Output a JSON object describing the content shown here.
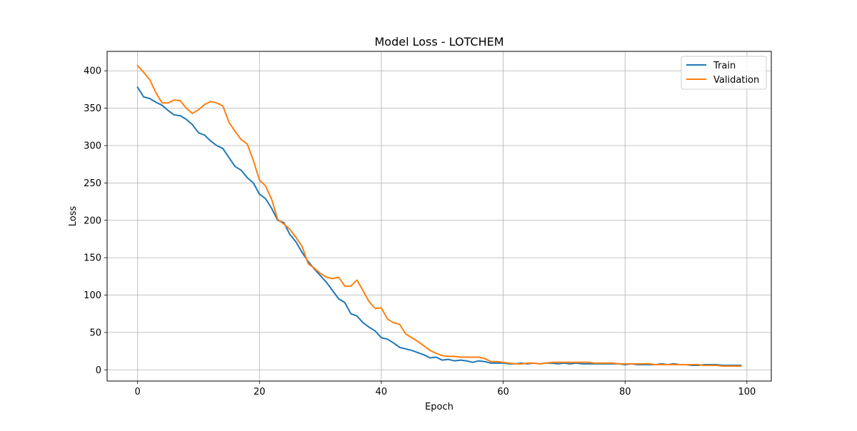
{
  "chart_data": {
    "type": "line",
    "title": "Model Loss - LOTCHEM",
    "xlabel": "Epoch",
    "ylabel": "Loss",
    "xlim": [
      -5,
      104
    ],
    "ylim": [
      -15,
      426
    ],
    "xticks": [
      0,
      20,
      40,
      60,
      80,
      100
    ],
    "yticks": [
      0,
      50,
      100,
      150,
      200,
      250,
      300,
      350,
      400
    ],
    "grid": true,
    "legend_position": "top-right",
    "series": [
      {
        "name": "Train",
        "color": "#1f77b4",
        "x": [
          0,
          1,
          2,
          3,
          4,
          5,
          6,
          7,
          8,
          9,
          10,
          11,
          12,
          13,
          14,
          15,
          16,
          17,
          18,
          19,
          20,
          21,
          22,
          23,
          24,
          25,
          26,
          27,
          28,
          29,
          30,
          31,
          32,
          33,
          34,
          35,
          36,
          37,
          38,
          39,
          40,
          41,
          42,
          43,
          44,
          45,
          46,
          47,
          48,
          49,
          50,
          51,
          52,
          53,
          54,
          55,
          56,
          57,
          58,
          59,
          60,
          61,
          62,
          63,
          64,
          65,
          66,
          67,
          68,
          69,
          70,
          71,
          72,
          73,
          74,
          75,
          76,
          77,
          78,
          79,
          80,
          81,
          82,
          83,
          84,
          85,
          86,
          87,
          88,
          89,
          90,
          91,
          92,
          93,
          94,
          95,
          96,
          97,
          98,
          99
        ],
        "values": [
          378,
          365,
          363,
          358,
          354,
          347,
          341,
          340,
          335,
          328,
          317,
          314,
          306,
          300,
          296,
          284,
          272,
          267,
          257,
          250,
          235,
          229,
          216,
          200,
          197,
          181,
          171,
          157,
          145,
          135,
          126,
          117,
          106,
          95,
          90,
          75,
          72,
          63,
          57,
          52,
          43,
          41,
          36,
          30,
          28,
          26,
          23,
          20,
          16,
          17,
          13,
          14,
          12,
          13,
          12,
          10,
          12,
          11,
          9,
          9,
          9,
          8,
          8,
          9,
          8,
          9,
          8,
          9,
          9,
          8,
          9,
          8,
          9,
          8,
          8,
          8,
          8,
          8,
          8,
          8,
          7,
          8,
          7,
          7,
          7,
          7,
          8,
          7,
          8,
          7,
          7,
          6,
          6,
          7,
          7,
          7,
          6,
          6,
          6,
          6
        ],
        "_comment": ""
      },
      {
        "name": "Validation",
        "color": "#ff7f0e",
        "x": [
          0,
          1,
          2,
          3,
          4,
          5,
          6,
          7,
          8,
          9,
          10,
          11,
          12,
          13,
          14,
          15,
          16,
          17,
          18,
          19,
          20,
          21,
          22,
          23,
          24,
          25,
          26,
          27,
          28,
          29,
          30,
          31,
          32,
          33,
          34,
          35,
          36,
          37,
          38,
          39,
          40,
          41,
          42,
          43,
          44,
          45,
          46,
          47,
          48,
          49,
          50,
          51,
          52,
          53,
          54,
          55,
          56,
          57,
          58,
          59,
          60,
          61,
          62,
          63,
          64,
          65,
          66,
          67,
          68,
          69,
          70,
          71,
          72,
          73,
          74,
          75,
          76,
          77,
          78,
          79,
          80,
          81,
          82,
          83,
          84,
          85,
          86,
          87,
          88,
          89,
          90,
          91,
          92,
          93,
          94,
          95,
          96,
          97,
          98,
          99
        ],
        "values": [
          407,
          398,
          388,
          371,
          357,
          357,
          361,
          360,
          350,
          343,
          348,
          355,
          359,
          357,
          353,
          331,
          319,
          308,
          302,
          280,
          254,
          246,
          228,
          201,
          195,
          188,
          177,
          165,
          142,
          136,
          129,
          124,
          122,
          124,
          112,
          112,
          120,
          106,
          91,
          82,
          83,
          68,
          63,
          61,
          48,
          43,
          38,
          32,
          26,
          22,
          19,
          18,
          18,
          17,
          17,
          17,
          17,
          15,
          11,
          11,
          10,
          9,
          8,
          8,
          9,
          9,
          8,
          9,
          10,
          10,
          10,
          10,
          10,
          10,
          10,
          9,
          9,
          9,
          9,
          8,
          8,
          8,
          8,
          8,
          8,
          7,
          7,
          7,
          7,
          7,
          7,
          7,
          7,
          6,
          6,
          6,
          5,
          5,
          5,
          5
        ]
      }
    ]
  }
}
